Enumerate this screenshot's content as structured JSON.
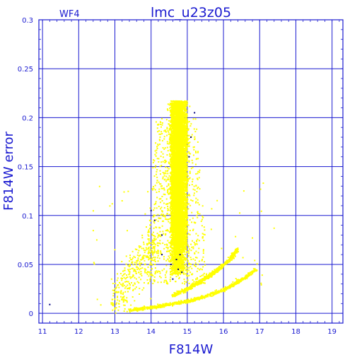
{
  "chart_data": {
    "type": "scatter",
    "title": "lmc_u23z05",
    "panel_label": "WF4",
    "xlabel": "F814W",
    "ylabel": "F814W error",
    "xlim": [
      10.9,
      19.3
    ],
    "ylim": [
      -0.01,
      0.3
    ],
    "x_ticks": [
      "11",
      "12",
      "13",
      "14",
      "15",
      "16",
      "17",
      "18",
      "19"
    ],
    "y_ticks": [
      "0",
      "0.05",
      "0.1",
      "0.15",
      "0.2",
      "0.25",
      "0.3"
    ],
    "grid": true,
    "colors": {
      "axis": "#1a1ad0",
      "grid": "#1a1ad0",
      "points": "#ffff00",
      "dark_points": "#000080"
    },
    "features": {
      "main_clump": {
        "x_range": [
          14.2,
          15.1
        ],
        "y_range": [
          0.04,
          0.217
        ],
        "peak_x": 14.75
      },
      "lower_sequence": [
        [
          13.4,
          0.003
        ],
        [
          14.0,
          0.006
        ],
        [
          14.5,
          0.009
        ],
        [
          15.0,
          0.012
        ],
        [
          15.5,
          0.017
        ],
        [
          16.0,
          0.024
        ],
        [
          16.5,
          0.034
        ],
        [
          16.9,
          0.045
        ]
      ],
      "upper_sequence": [
        [
          14.6,
          0.018
        ],
        [
          15.0,
          0.025
        ],
        [
          15.4,
          0.033
        ],
        [
          15.8,
          0.043
        ],
        [
          16.2,
          0.056
        ],
        [
          16.4,
          0.066
        ]
      ],
      "faint_tail": {
        "x_range": [
          12.9,
          14.2
        ],
        "y_range": [
          0.01,
          0.12
        ]
      },
      "dark_points": [
        [
          11.2,
          0.009
        ],
        [
          14.0,
          0.105
        ],
        [
          14.1,
          0.095
        ],
        [
          14.3,
          0.08
        ],
        [
          14.55,
          0.05
        ],
        [
          14.6,
          0.035
        ],
        [
          14.7,
          0.055
        ],
        [
          14.75,
          0.045
        ],
        [
          14.8,
          0.06
        ],
        [
          14.85,
          0.042
        ],
        [
          15.05,
          0.16
        ],
        [
          15.1,
          0.18
        ],
        [
          15.2,
          0.205
        ],
        [
          14.3,
          0.06
        ]
      ],
      "outliers": [
        [
          17.1,
          0.133
        ],
        [
          17.4,
          0.087
        ],
        [
          16.8,
          0.077
        ],
        [
          13.0,
          0.065
        ],
        [
          12.5,
          0.075
        ],
        [
          13.2,
          0.115
        ]
      ]
    }
  }
}
